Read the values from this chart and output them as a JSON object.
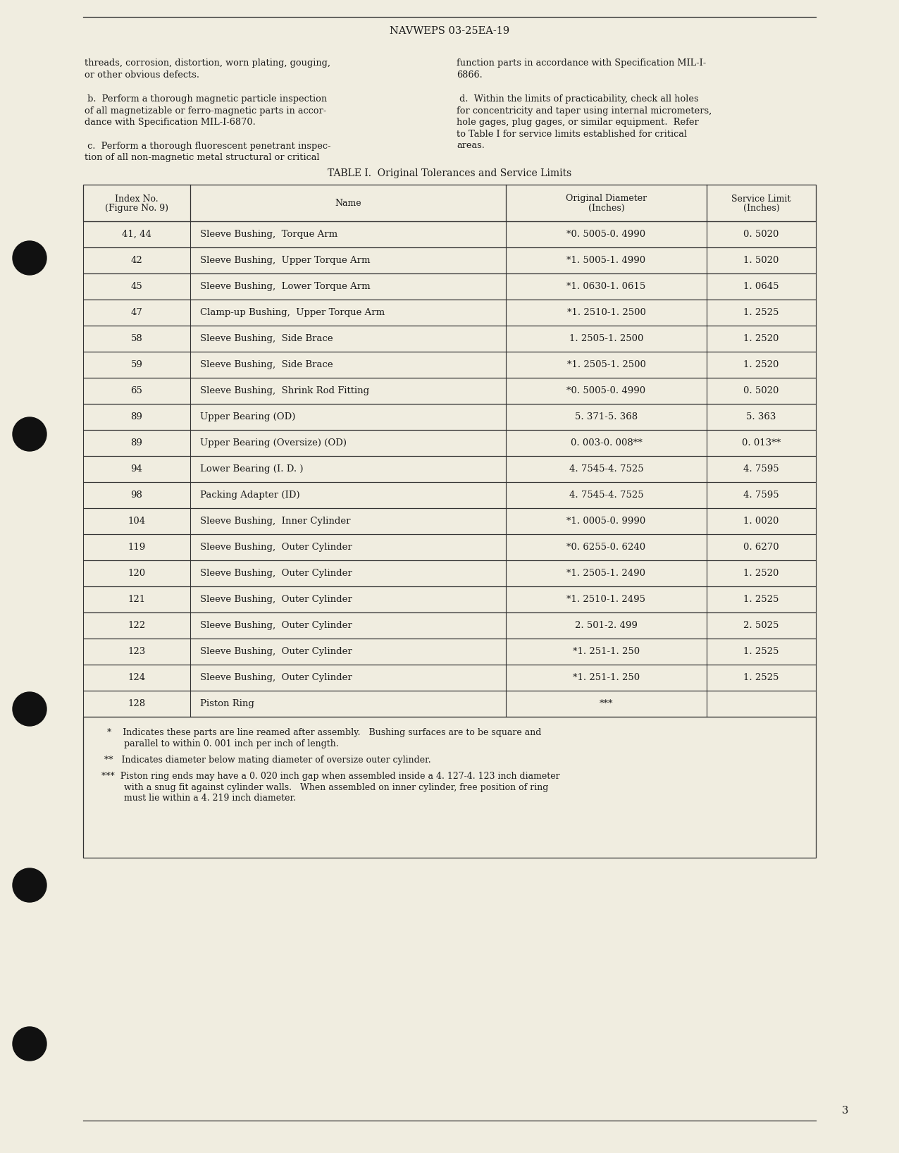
{
  "bg_color": "#f0ede0",
  "header": "NAVWEPS 03-25EA-19",
  "left_paragraphs": [
    [
      "threads, corrosion, distortion, worn plating, gouging,",
      "or other obvious defects."
    ],
    [
      " b.  Perform a thorough magnetic particle inspection",
      "of all magnetizable or ferro-magnetic parts in accor-",
      "dance with Specification MIL-I-6870."
    ],
    [
      " c.  Perform a thorough fluorescent penetrant inspec-",
      "tion of all non-magnetic metal structural or critical"
    ]
  ],
  "right_paragraphs": [
    [
      "function parts in accordance with Specification MIL-I-",
      "6866."
    ],
    [
      " d.  Within the limits of practicability, check all holes",
      "for concentricity and taper using internal micrometers,",
      "hole gages, plug gages, or similar equipment.  Refer",
      "to Table I for service limits established for critical",
      "areas."
    ]
  ],
  "table_title": "TABLE I.  Original Tolerances and Service Limits",
  "table_rows": [
    [
      "41, 44",
      "Sleeve Bushing,  Torque Arm",
      "*0. 5005-0. 4990",
      "0. 5020"
    ],
    [
      "42",
      "Sleeve Bushing,  Upper Torque Arm",
      "*1. 5005-1. 4990",
      "1. 5020"
    ],
    [
      "45",
      "Sleeve Bushing,  Lower Torque Arm",
      "*1. 0630-1. 0615",
      "1. 0645"
    ],
    [
      "47",
      "Clamp-up Bushing,  Upper Torque Arm",
      "*1. 2510-1. 2500",
      "1. 2525"
    ],
    [
      "58",
      "Sleeve Bushing,  Side Brace",
      "1. 2505-1. 2500",
      "1. 2520"
    ],
    [
      "59",
      "Sleeve Bushing,  Side Brace",
      "*1. 2505-1. 2500",
      "1. 2520"
    ],
    [
      "65",
      "Sleeve Bushing,  Shrink Rod Fitting",
      "*0. 5005-0. 4990",
      "0. 5020"
    ],
    [
      "89",
      "Upper Bearing (OD)",
      "5. 371-5. 368",
      "5. 363"
    ],
    [
      "89",
      "Upper Bearing (Oversize) (OD)",
      "0. 003-0. 008**",
      "0. 013**"
    ],
    [
      "94",
      "Lower Bearing (I. D. )",
      "4. 7545-4. 7525",
      "4. 7595"
    ],
    [
      "98",
      "Packing Adapter (ID)",
      "4. 7545-4. 7525",
      "4. 7595"
    ],
    [
      "104",
      "Sleeve Bushing,  Inner Cylinder",
      "*1. 0005-0. 9990",
      "1. 0020"
    ],
    [
      "119",
      "Sleeve Bushing,  Outer Cylinder",
      "*0. 6255-0. 6240",
      "0. 6270"
    ],
    [
      "120",
      "Sleeve Bushing,  Outer Cylinder",
      "*1. 2505-1. 2490",
      "1. 2520"
    ],
    [
      "121",
      "Sleeve Bushing,  Outer Cylinder",
      "*1. 2510-1. 2495",
      "1. 2525"
    ],
    [
      "122",
      "Sleeve Bushing,  Outer Cylinder",
      "2. 501-2. 499",
      "2. 5025"
    ],
    [
      "123",
      "Sleeve Bushing,  Outer Cylinder",
      "*1. 251-1. 250",
      "1. 2525"
    ],
    [
      "124",
      "Sleeve Bushing,  Outer Cylinder",
      "*1. 251-1. 250",
      "1. 2525"
    ],
    [
      "128",
      "Piston Ring",
      "***",
      ""
    ]
  ],
  "footnote1_line1": "    *    Indicates these parts are line reamed after assembly.   Bushing surfaces are to be square and",
  "footnote1_line2": "          parallel to within 0. 001 inch per inch of length.",
  "footnote2": "   **   Indicates diameter below mating diameter of oversize outer cylinder.",
  "footnote3_line1": "  ***  Piston ring ends may have a 0. 020 inch gap when assembled inside a 4. 127-4. 123 inch diameter",
  "footnote3_line2": "          with a snug fit against cylinder walls.   When assembled on inner cylinder, free position of ring",
  "footnote3_line3": "          must lie within a 4. 219 inch diameter.",
  "page_number": "3",
  "text_color": "#1a1a1a",
  "line_color": "#333333",
  "hole_color": "#111111"
}
